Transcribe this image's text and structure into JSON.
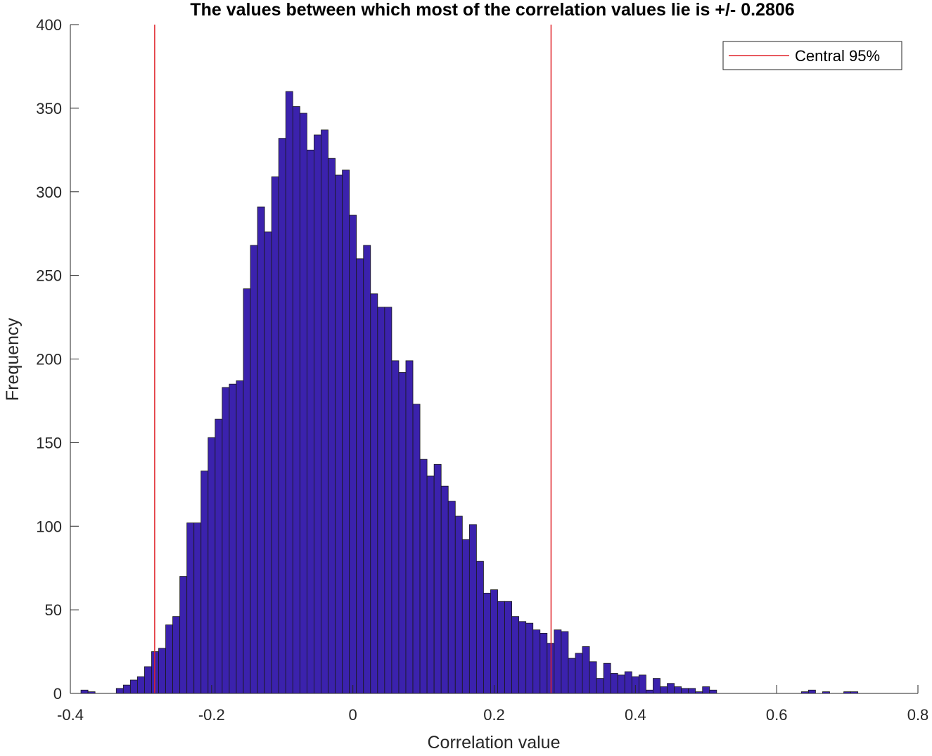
{
  "chart_data": {
    "type": "bar",
    "title": "The values between which most of the correlation values lie is +/- 0.2806",
    "xlabel": "Correlation value",
    "ylabel": "Frequency",
    "xlim": [
      -0.4,
      0.8
    ],
    "ylim": [
      0,
      400
    ],
    "xticks": [
      "-0.4",
      "-0.2",
      "0",
      "0.2",
      "0.4",
      "0.6",
      "0.8"
    ],
    "yticks": [
      "0",
      "50",
      "100",
      "150",
      "200",
      "250",
      "300",
      "350",
      "400"
    ],
    "bin_start": -0.385,
    "bin_width": 0.01,
    "values": [
      2,
      1,
      0,
      0,
      0,
      3,
      5,
      8,
      10,
      16,
      25,
      27,
      41,
      46,
      70,
      102,
      102,
      133,
      153,
      164,
      183,
      185,
      187,
      242,
      268,
      291,
      276,
      309,
      332,
      360,
      351,
      347,
      325,
      334,
      337,
      320,
      310,
      313,
      286,
      260,
      268,
      239,
      231,
      231,
      199,
      192,
      199,
      173,
      140,
      130,
      137,
      124,
      115,
      106,
      92,
      101,
      79,
      60,
      62,
      55,
      55,
      46,
      43,
      42,
      38,
      36,
      30,
      38,
      37,
      21,
      24,
      28,
      19,
      9,
      18,
      12,
      11,
      13,
      10,
      11,
      2,
      9,
      4,
      6,
      4,
      3,
      3,
      1,
      4,
      2,
      0,
      0,
      0,
      0,
      0,
      0,
      0,
      0,
      0,
      0,
      0,
      0,
      1,
      2,
      0,
      1,
      0,
      0,
      1,
      1
    ],
    "reference_lines": [
      {
        "name": "Central 95%",
        "x": [
          -0.2806,
          0.2806
        ],
        "color": "#e0232a"
      }
    ],
    "bar_color": "#3b22ad",
    "bar_edge_color": "#1a1a1a",
    "legend": {
      "location": "top-right",
      "entries": [
        "Central 95%"
      ]
    }
  }
}
